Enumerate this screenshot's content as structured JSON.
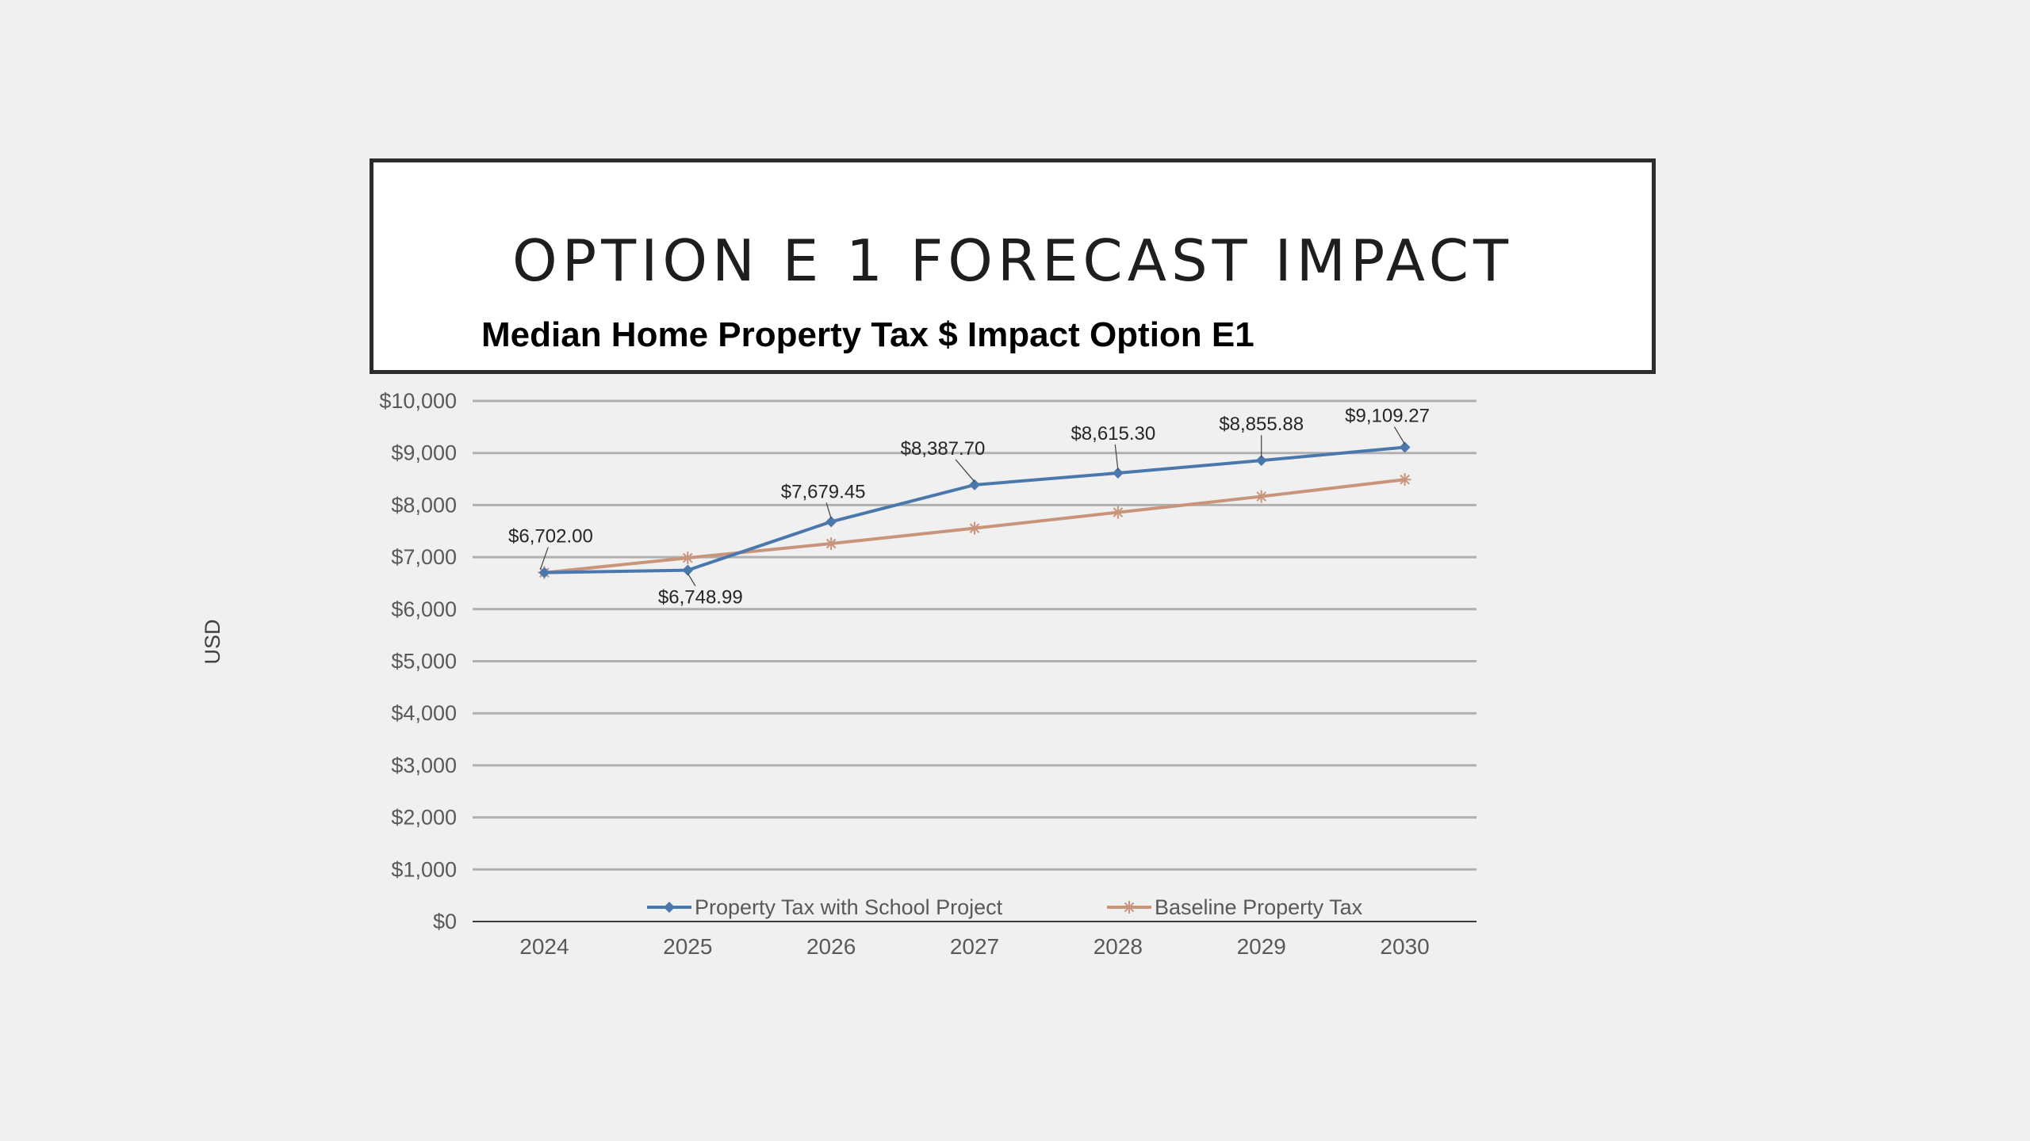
{
  "slide": {
    "title": "OPTION E 1 FORECAST IMPACT"
  },
  "chart_data": {
    "type": "line",
    "title": "Median Home Property Tax $ Impact Option E1",
    "xlabel": "",
    "ylabel": "USD",
    "categories": [
      "2024",
      "2025",
      "2026",
      "2027",
      "2028",
      "2029",
      "2030"
    ],
    "ylim": [
      0,
      10000
    ],
    "yticks": [
      0,
      1000,
      2000,
      3000,
      4000,
      5000,
      6000,
      7000,
      8000,
      9000,
      10000
    ],
    "ytick_labels": [
      "$0",
      "$1,000",
      "$2,000",
      "$3,000",
      "$4,000",
      "$5,000",
      "$6,000",
      "$7,000",
      "$8,000",
      "$9,000",
      "$10,000"
    ],
    "grid": true,
    "legend_position": "bottom",
    "series": [
      {
        "name": "Property Tax with School Project",
        "color": "#4a78ad",
        "marker": "diamond",
        "values": [
          6702.0,
          6748.99,
          7679.45,
          8387.7,
          8615.3,
          8855.88,
          9109.27
        ],
        "data_labels": [
          "$6,702.00",
          "$6,748.99",
          "$7,679.45",
          "$8,387.70",
          "$8,615.30",
          "$8,855.88",
          "$9,109.27"
        ]
      },
      {
        "name": "Baseline Property Tax",
        "color": "#c8957a",
        "marker": "star",
        "values": [
          6702,
          6985,
          7260,
          7555,
          7860,
          8165,
          8490
        ]
      }
    ]
  }
}
